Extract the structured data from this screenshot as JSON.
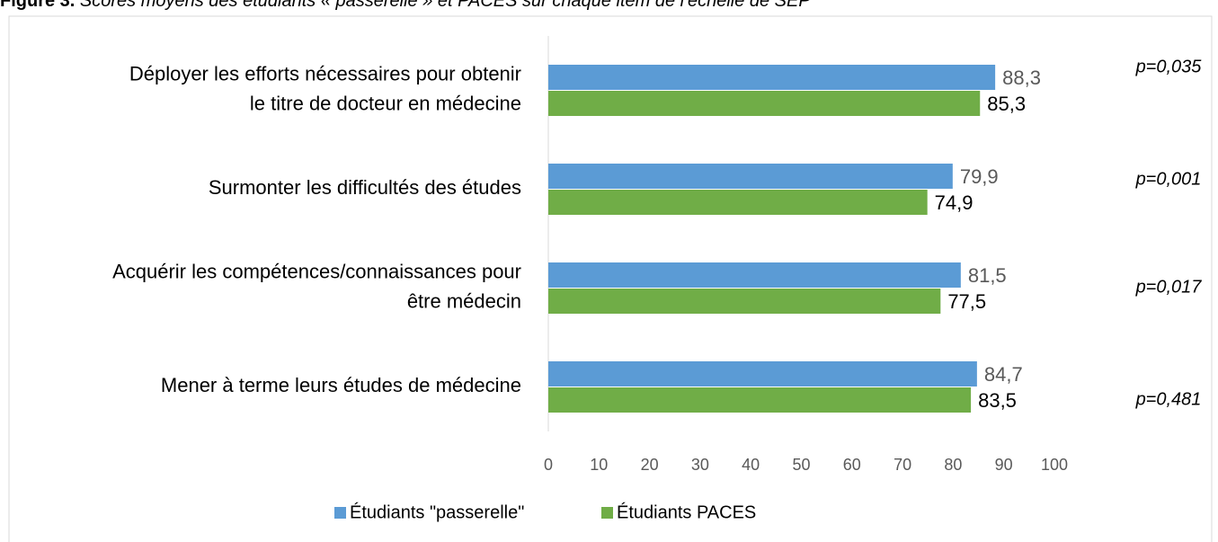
{
  "chart_data": {
    "type": "hbar",
    "figure_label": "Figure 3.",
    "title": "Scores moyens des étudiants « passerelle » et PACES sur chaque item de l'échelle de SEP",
    "categories": [
      [
        "Déployer les efforts nécessaires pour obtenir",
        "le titre de docteur en médecine"
      ],
      [
        "Surmonter les difficultés des études"
      ],
      [
        "Acquérir les compétences/connaissances pour",
        "être médecin"
      ],
      [
        "Mener à terme leurs études de médecine"
      ]
    ],
    "series": [
      {
        "name": "Étudiants \"passerelle\"",
        "color": "#5b9bd5",
        "values": [
          88.3,
          79.9,
          81.5,
          84.7
        ],
        "value_labels": [
          "88,3",
          "79,9",
          "81,5",
          "84,7"
        ]
      },
      {
        "name": "Étudiants PACES",
        "color": "#70ad47",
        "values": [
          85.3,
          74.9,
          77.5,
          83.5
        ],
        "value_labels": [
          "85,3",
          "74,9",
          "77,5",
          "83,5"
        ]
      }
    ],
    "annotations": [
      "p=0,035",
      "p=0,001",
      "p=0,017",
      "p=0,481"
    ],
    "xlim": [
      0,
      100
    ],
    "xticks": [
      0,
      10,
      20,
      30,
      40,
      50,
      60,
      70,
      80,
      90,
      100
    ],
    "legend": "bottom"
  }
}
